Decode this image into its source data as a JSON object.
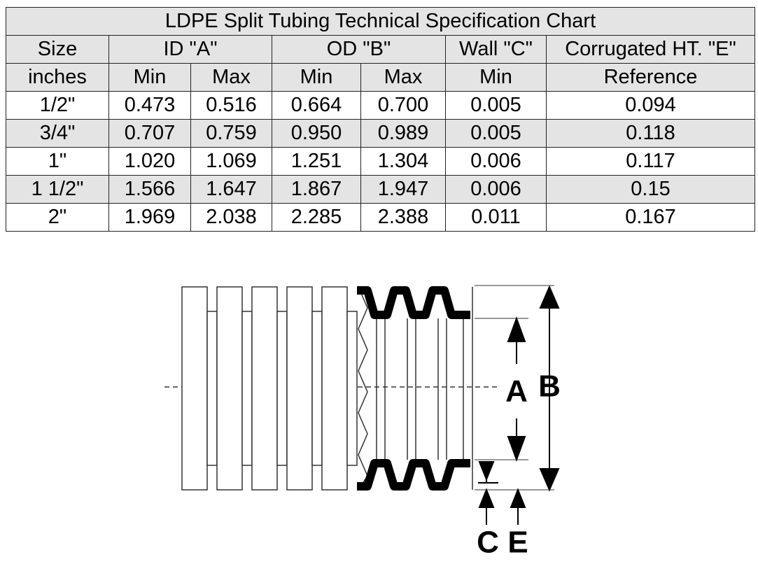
{
  "table": {
    "title": "LDPE Split Tubing Technical Specification Chart",
    "header_top": [
      "Size",
      "ID \"A\"",
      "OD \"B\"",
      "Wall \"C\"",
      "Corrugated HT. \"E\""
    ],
    "header_sub": [
      "inches",
      "Min",
      "Max",
      "Min",
      "Max",
      "Min",
      "Reference"
    ],
    "rows": [
      [
        "1/2\"",
        "0.473",
        "0.516",
        "0.664",
        "0.700",
        "0.005",
        "0.094"
      ],
      [
        "3/4\"",
        "0.707",
        "0.759",
        "0.950",
        "0.989",
        "0.005",
        "0.118"
      ],
      [
        "1\"",
        "1.020",
        "1.069",
        "1.251",
        "1.304",
        "0.006",
        "0.117"
      ],
      [
        "1 1/2\"",
        "1.566",
        "1.647",
        "1.867",
        "1.947",
        "0.006",
        "0.15"
      ],
      [
        "2\"",
        "1.969",
        "2.038",
        "2.285",
        "2.388",
        "0.011",
        "0.167"
      ]
    ]
  },
  "diagram": {
    "labels": {
      "a": "A",
      "b": "B",
      "c": "C",
      "e": "E"
    }
  }
}
